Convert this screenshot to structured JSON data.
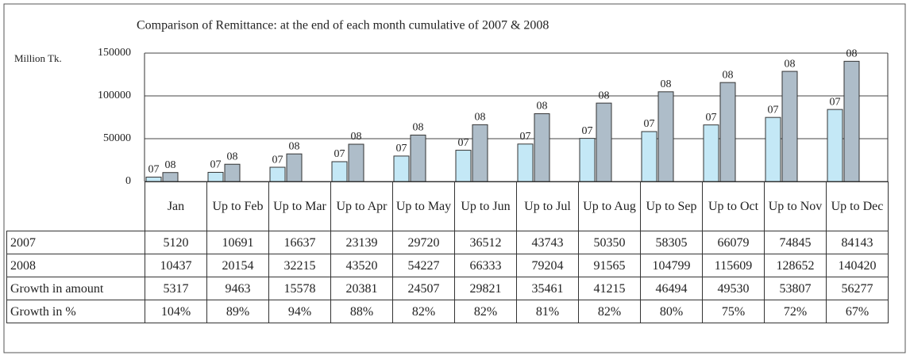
{
  "chart_data": {
    "type": "bar",
    "title": "Comparison of Remittance: at the end of each month cumulative of 2007 & 2008",
    "y_label": "Million Tk.",
    "categories": [
      "Jan",
      "Up to Feb",
      "Up to Mar",
      "Up to Apr",
      "Up to May",
      "Up to Jun",
      "Up to Jul",
      "Up to Aug",
      "Up to Sep",
      "Up to Oct",
      "Up to Nov",
      "Up to Dec"
    ],
    "series": [
      {
        "name": "07",
        "label": "2007",
        "color": "#c4e8f6",
        "values": [
          5120,
          10691,
          16637,
          23139,
          29720,
          36512,
          43743,
          50350,
          58305,
          66079,
          74845,
          84143
        ]
      },
      {
        "name": "08",
        "label": "2008",
        "color": "#aebdc9",
        "values": [
          10437,
          20154,
          32215,
          43520,
          54227,
          66333,
          79204,
          91565,
          104799,
          115609,
          128652,
          140420
        ]
      }
    ],
    "growth_amount": {
      "label": "Growth in amount",
      "values": [
        5317,
        9463,
        15578,
        20381,
        24507,
        29821,
        35461,
        41215,
        46494,
        49530,
        53807,
        56277
      ]
    },
    "growth_pct": {
      "label": "Growth in %",
      "values": [
        104,
        89,
        94,
        88,
        82,
        82,
        81,
        82,
        80,
        75,
        72,
        67
      ],
      "value_labels": [
        "104%",
        "89%",
        "94%",
        "88%",
        "82%",
        "82%",
        "81%",
        "82%",
        "80%",
        "75%",
        "72%",
        "67%"
      ]
    },
    "ylim": [
      0,
      150000
    ],
    "yticks": [
      0,
      50000,
      100000,
      150000
    ],
    "grid": true
  }
}
